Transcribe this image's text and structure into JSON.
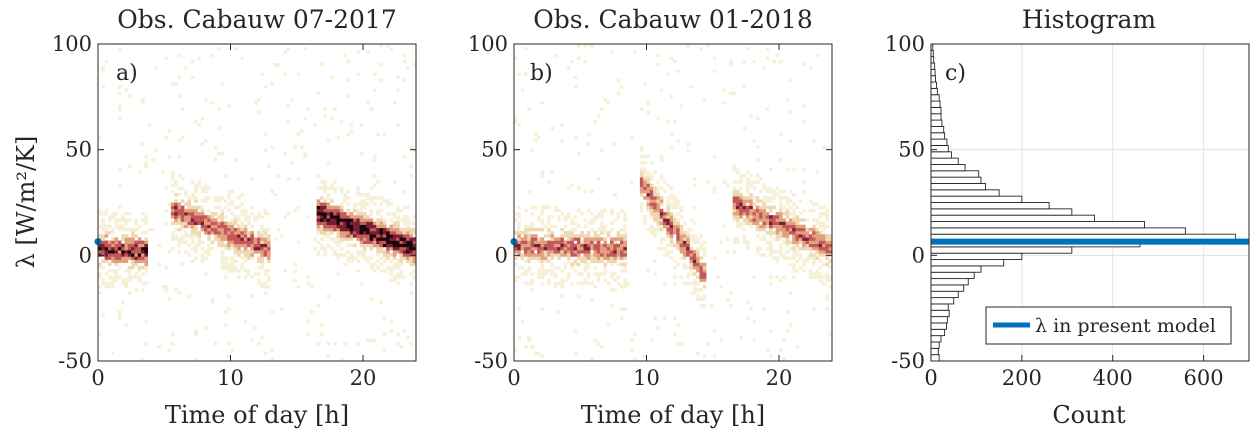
{
  "chart_data": [
    {
      "type": "heatmap",
      "title": "Obs. Cabauw 07-2017",
      "panel_label": "a)",
      "xlabel": "Time of day [h]",
      "ylabel": "λ [W/m²/K]",
      "xlim": [
        0,
        24
      ],
      "ylim": [
        -50,
        100
      ],
      "xticks": [
        0,
        10,
        20
      ],
      "yticks": [
        -50,
        0,
        50,
        100
      ],
      "marker": {
        "x": 0,
        "y": 6.5,
        "color": "#0072BD"
      },
      "colormap": [
        "#f5f0d6",
        "#efd9b4",
        "#e2a07d",
        "#c2585c",
        "#7a1e34",
        "#1a0508"
      ],
      "density_trend": [
        {
          "segment": 1,
          "x_start": 0,
          "x_end": 3.7,
          "y_start": 3,
          "y_end": 2,
          "peak": "high"
        },
        {
          "segment": 2,
          "x_start": 5.5,
          "x_end": 13,
          "y_start": 22,
          "y_end": 2,
          "peak": "medium"
        },
        {
          "segment": 3,
          "x_start": 16.5,
          "x_end": 24,
          "y_start": 20,
          "y_end": 3,
          "peak": "very high"
        }
      ]
    },
    {
      "type": "heatmap",
      "title": "Obs. Cabauw 01-2018",
      "panel_label": "b)",
      "xlabel": "Time of day [h]",
      "ylabel": "",
      "xlim": [
        0,
        24
      ],
      "ylim": [
        -50,
        100
      ],
      "xticks": [
        0,
        10,
        20
      ],
      "yticks": [
        -50,
        0,
        50,
        100
      ],
      "marker": {
        "x": 0,
        "y": 6.5,
        "color": "#0072BD"
      },
      "colormap": [
        "#f5f0d6",
        "#efd9b4",
        "#e2a07d",
        "#c2585c",
        "#7a1e34",
        "#1a0508"
      ],
      "density_trend": [
        {
          "segment": 1,
          "x_start": 0,
          "x_end": 8.5,
          "y_start": 5,
          "y_end": 3,
          "peak": "medium"
        },
        {
          "segment": 2,
          "x_start": 9.5,
          "x_end": 14.5,
          "y_start": 35,
          "y_end": -10,
          "peak": "medium"
        },
        {
          "segment": 3,
          "x_start": 16.5,
          "x_end": 24,
          "y_start": 25,
          "y_end": 3,
          "peak": "medium"
        }
      ]
    },
    {
      "type": "bar",
      "orientation": "horizontal",
      "title": "Histogram",
      "panel_label": "c)",
      "xlabel": "Count",
      "ylabel": "",
      "xlim": [
        0,
        700
      ],
      "ylim": [
        -50,
        100
      ],
      "xticks": [
        0,
        200,
        400,
        600
      ],
      "yticks": [
        -50,
        0,
        50,
        100
      ],
      "grid": true,
      "bin_width": 3,
      "bin_centers": [
        -48.5,
        -45.5,
        -42.5,
        -39.5,
        -36.5,
        -33.5,
        -30.5,
        -27.5,
        -24.5,
        -21.5,
        -18.5,
        -15.5,
        -12.5,
        -9.5,
        -6.5,
        -3.5,
        -0.5,
        2.5,
        5.5,
        8.5,
        11.5,
        14.5,
        17.5,
        20.5,
        23.5,
        26.5,
        29.5,
        32.5,
        35.5,
        38.5,
        41.5,
        44.5,
        47.5,
        50.5,
        53.5,
        56.5,
        59.5,
        62.5,
        65.5,
        68.5,
        71.5,
        74.5,
        77.5,
        80.5,
        83.5,
        86.5,
        89.5,
        92.5,
        95.5,
        98.5
      ],
      "values": [
        18,
        16,
        18,
        22,
        30,
        34,
        36,
        40,
        38,
        50,
        60,
        72,
        82,
        95,
        110,
        160,
        200,
        310,
        460,
        670,
        560,
        470,
        360,
        310,
        260,
        200,
        150,
        120,
        110,
        105,
        75,
        60,
        45,
        38,
        35,
        30,
        28,
        24,
        22,
        22,
        20,
        18,
        14,
        12,
        10,
        9,
        8,
        6,
        5,
        4
      ],
      "reference_line": {
        "label": "λ in present model",
        "value": 6.5,
        "color": "#0072BD"
      },
      "legend_position": "bottom-right"
    }
  ]
}
